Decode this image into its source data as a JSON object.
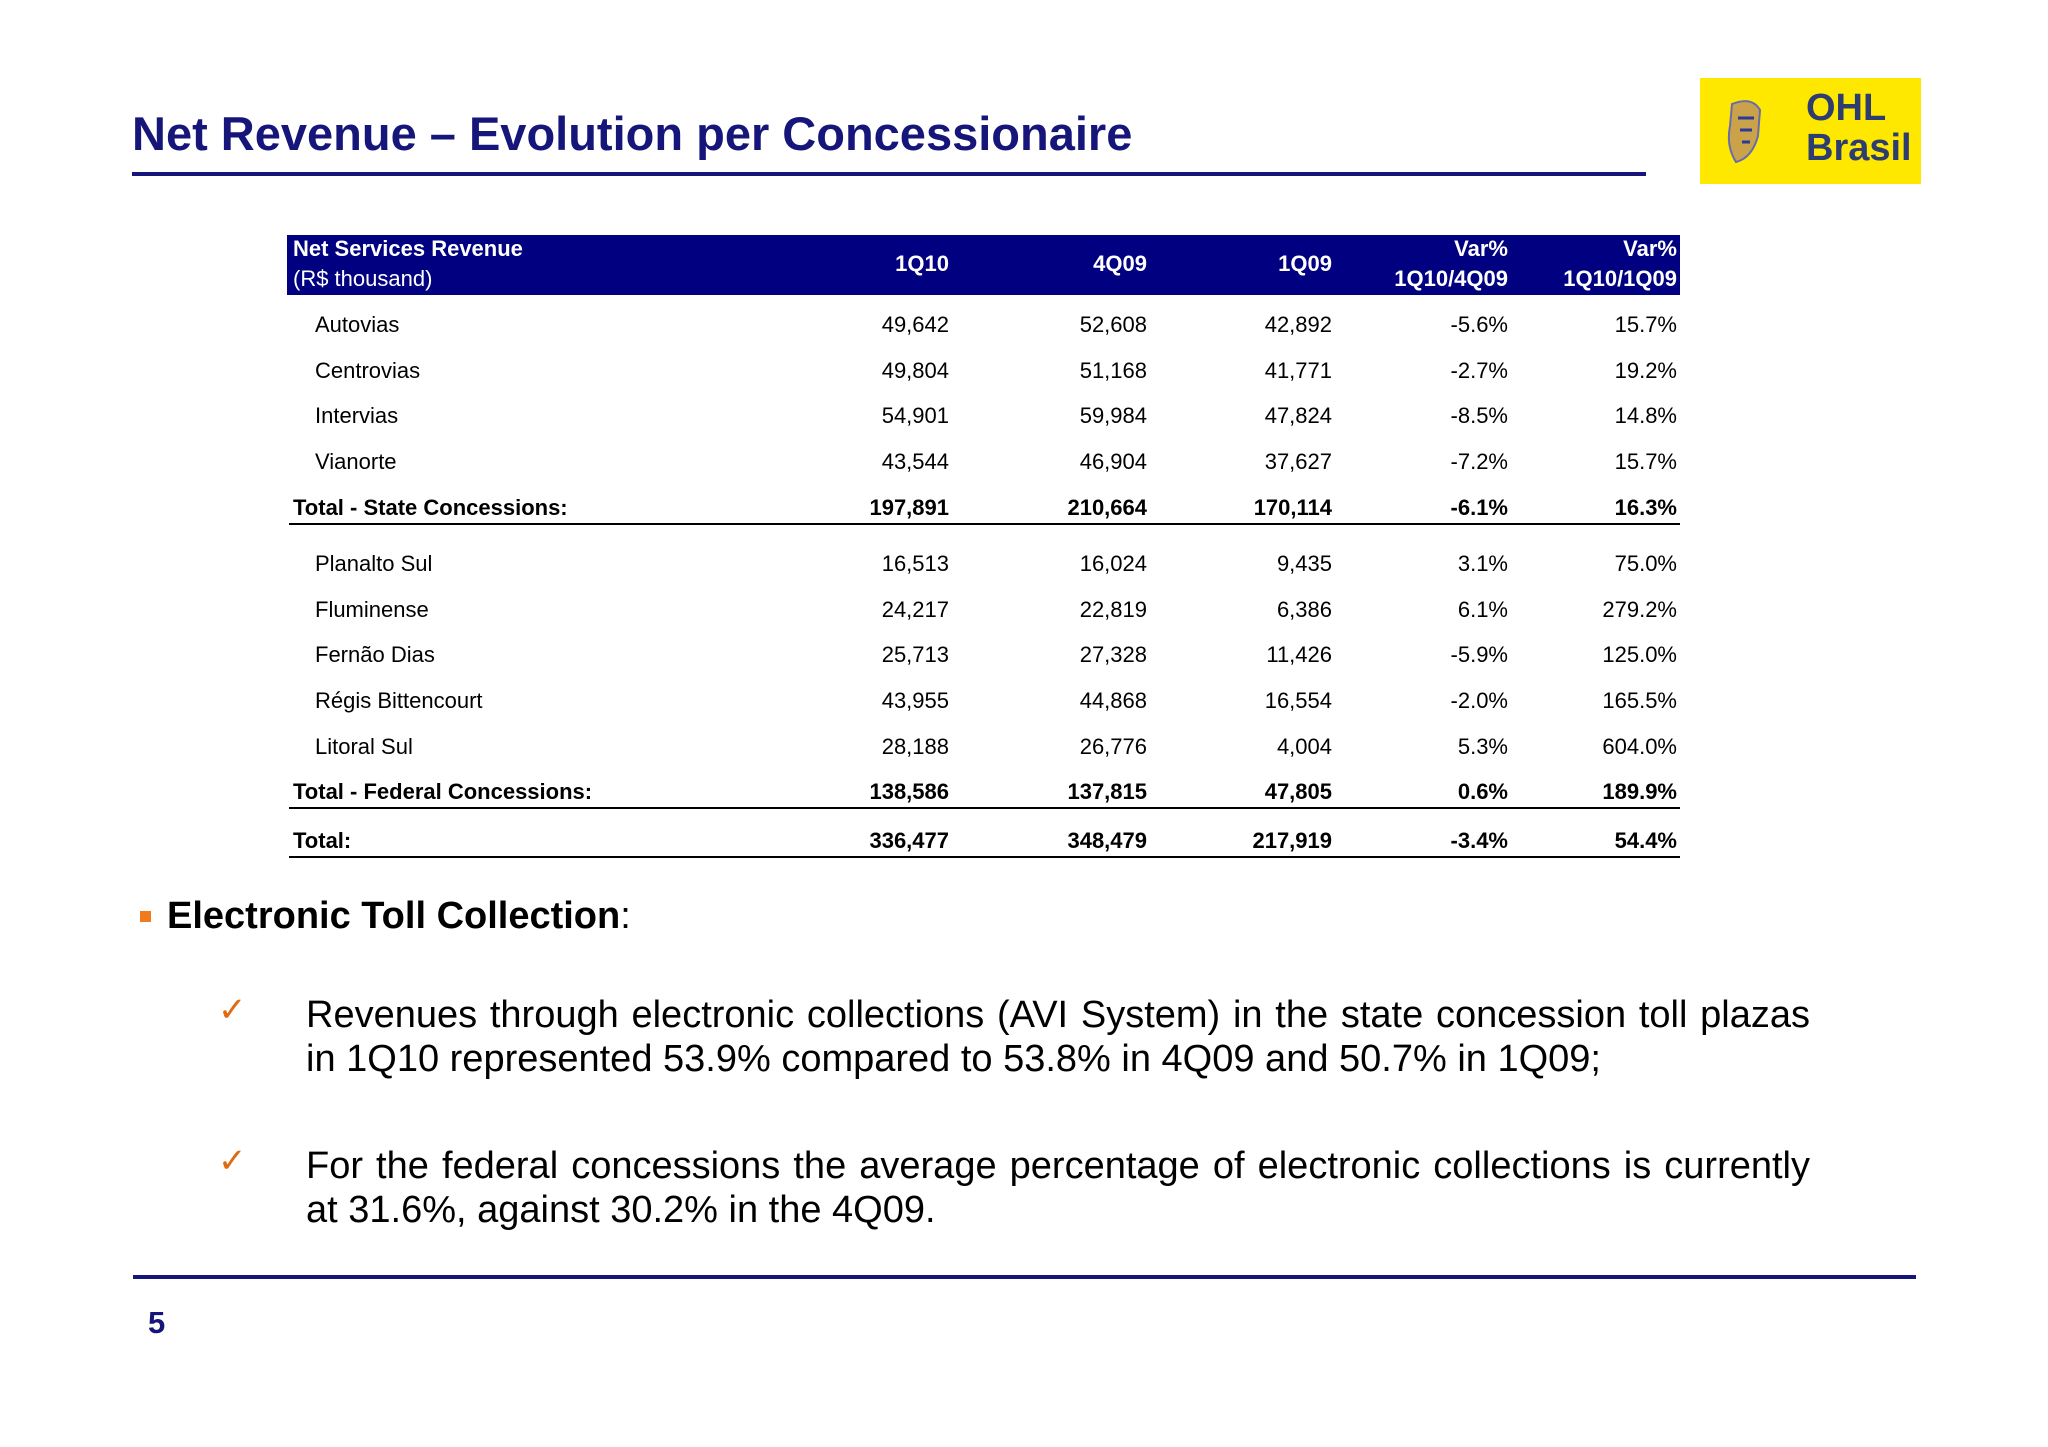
{
  "header": {
    "title": "Net Revenue – Evolution per Concessionaire",
    "logo": [
      "OHL",
      "Brasil"
    ]
  },
  "table": {
    "head": {
      "label": "Net Services Revenue",
      "sublabel": "(R$ thousand)",
      "columns": [
        [
          "1Q10"
        ],
        [
          "4Q09"
        ],
        [
          "1Q09"
        ],
        [
          "Var%",
          "1Q10/4Q09"
        ],
        [
          "Var%",
          "1Q10/1Q09"
        ]
      ]
    },
    "sections": [
      {
        "rows": [
          {
            "label": "Autovias",
            "values": [
              "49,642",
              "52,608",
              "42,892",
              "-5.6%",
              "15.7%"
            ]
          },
          {
            "label": "Centrovias",
            "values": [
              "49,804",
              "51,168",
              "41,771",
              "-2.7%",
              "19.2%"
            ]
          },
          {
            "label": "Intervias",
            "values": [
              "54,901",
              "59,984",
              "47,824",
              "-8.5%",
              "14.8%"
            ]
          },
          {
            "label": "Vianorte",
            "values": [
              "43,544",
              "46,904",
              "37,627",
              "-7.2%",
              "15.7%"
            ]
          }
        ],
        "total": {
          "label": "Total - State Concessions:",
          "values": [
            "197,891",
            "210,664",
            "170,114",
            "-6.1%",
            "16.3%"
          ]
        }
      },
      {
        "rows": [
          {
            "label": "Planalto Sul",
            "values": [
              "16,513",
              "16,024",
              "9,435",
              "3.1%",
              "75.0%"
            ]
          },
          {
            "label": "Fluminense",
            "values": [
              "24,217",
              "22,819",
              "6,386",
              "6.1%",
              "279.2%"
            ]
          },
          {
            "label": "Fernão Dias",
            "values": [
              "25,713",
              "27,328",
              "11,426",
              "-5.9%",
              "125.0%"
            ]
          },
          {
            "label": "Régis Bittencourt",
            "values": [
              "43,955",
              "44,868",
              "16,554",
              "-2.0%",
              "165.5%"
            ]
          },
          {
            "label": "Litoral Sul",
            "values": [
              "28,188",
              "26,776",
              "4,004",
              "5.3%",
              "604.0%"
            ]
          }
        ],
        "total": {
          "label": "Total - Federal Concessions:",
          "values": [
            "138,586",
            "137,815",
            "47,805",
            "0.6%",
            "189.9%"
          ]
        }
      }
    ],
    "grand_total": {
      "label": "Total:",
      "values": [
        "336,477",
        "348,479",
        "217,919",
        "-3.4%",
        "54.4%"
      ]
    }
  },
  "section": {
    "heading": "Electronic Toll Collection",
    "colon": ":",
    "items": [
      {
        "mark": "✓",
        "text": "Revenues through electronic collections (AVI System) in the state concession toll plazas in 1Q10 represented 53.9% compared to 53.8% in 4Q09 and 50.7% in 1Q09;"
      },
      {
        "mark": "✓",
        "text": "For the federal concessions the average percentage of electronic collections is currently at 31.6%, against 30.2% in the 4Q09."
      }
    ]
  },
  "footer": {
    "page": "5"
  }
}
